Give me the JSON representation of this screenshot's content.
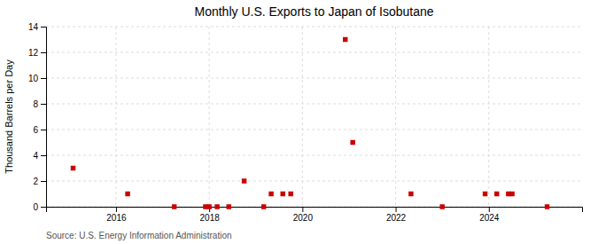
{
  "chart_data": {
    "type": "scatter",
    "title": "Monthly U.S. Exports to Japan of Isobutane",
    "ylabel": "Thousand Barrels per Day",
    "annotations": [
      "Source: U.S. Energy Information Administration"
    ],
    "x": [
      2015.08,
      2016.25,
      2017.25,
      2017.92,
      2018.0,
      2018.17,
      2018.42,
      2018.75,
      2019.17,
      2019.33,
      2019.58,
      2019.75,
      2020.92,
      2021.08,
      2022.33,
      2023.0,
      2023.92,
      2024.17,
      2024.42,
      2024.5,
      2025.25
    ],
    "values": [
      3.0,
      1.0,
      0.0,
      0.0,
      0.0,
      0.0,
      0.0,
      2.0,
      0.0,
      1.0,
      1.0,
      1.0,
      13.0,
      5.0,
      1.0,
      0.0,
      1.0,
      1.0,
      1.0,
      1.0,
      0.0
    ],
    "color": "#cc0000",
    "marker": "square",
    "xlim": [
      2014.5,
      2026.0
    ],
    "xticks": [
      2016,
      2018,
      2020,
      2022,
      2024
    ],
    "ylim": [
      0,
      14
    ],
    "yticks": [
      0,
      2,
      4,
      6,
      8,
      10,
      12,
      14
    ],
    "grid": true
  }
}
